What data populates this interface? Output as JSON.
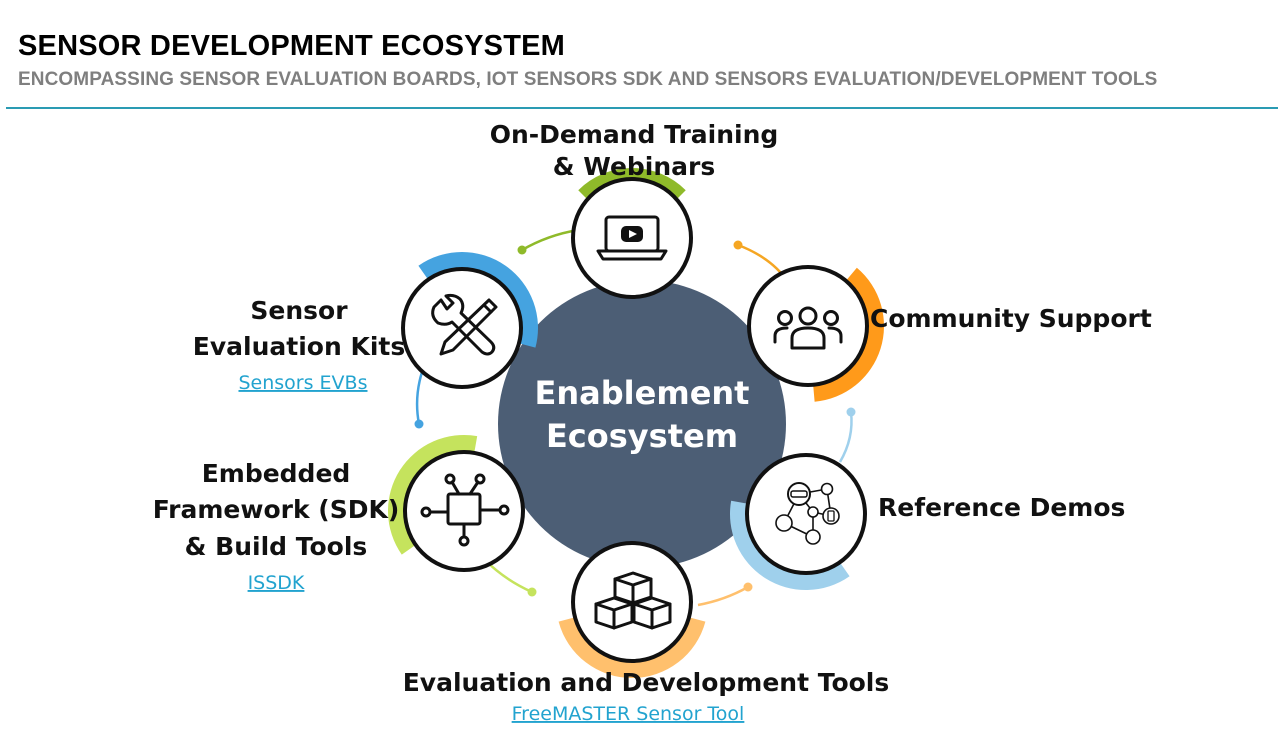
{
  "header": {
    "title": "SENSOR DEVELOPMENT ECOSYSTEM",
    "subtitle": "ENCOMPASSING SENSOR EVALUATION BOARDS, IOT SENSORS SDK AND SENSORS EVALUATION/DEVELOPMENT TOOLS"
  },
  "center": {
    "line1": "Enablement",
    "line2": "Ecosystem"
  },
  "nodes": {
    "training": {
      "line1": "On-Demand Training",
      "line2": "& Webinars",
      "color": "#8fba2a",
      "icon": "laptop-play-icon"
    },
    "community": {
      "label": "Community Support",
      "color": "#ff9a1a",
      "icon": "people-group-icon"
    },
    "demos": {
      "label": "Reference Demos",
      "color": "#9fd0ec",
      "icon": "connected-devices-icon"
    },
    "tools": {
      "label": "Evaluation and Development Tools",
      "link": "FreeMASTER Sensor Tool",
      "color": "#ffc06d",
      "icon": "cubes-icon"
    },
    "sdk": {
      "line1": "Embedded",
      "line2": "Framework (SDK)",
      "line3": "& Build Tools",
      "link": "ISSDK",
      "color": "#c5e35d",
      "icon": "circuit-chip-icon"
    },
    "evk": {
      "line1": "Sensor",
      "line2": "Evaluation Kits",
      "link": "Sensors EVBs",
      "color": "#45a3e0",
      "icon": "wrench-pencil-icon"
    }
  },
  "colors": {
    "hub": "#4c5e75",
    "accent_rule": "#2a9bb3",
    "link": "#22a3cf"
  }
}
